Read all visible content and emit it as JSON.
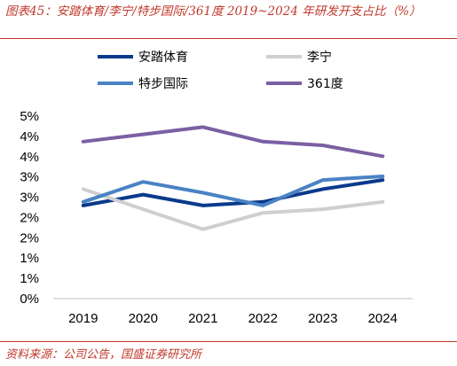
{
  "title": "图表45：安踏体育/李宁/特步国际/361度 2019~2024 年研发开支占比（%）",
  "source": "资料来源：公司公告，国盛证券研究所",
  "chart_data": {
    "type": "line",
    "x": [
      "2019",
      "2020",
      "2021",
      "2022",
      "2023",
      "2024"
    ],
    "ylim": [
      0,
      5
    ],
    "yticks": [
      "0%",
      "1%",
      "1%",
      "2%",
      "2%",
      "3%",
      "3%",
      "4%",
      "4%",
      "5%"
    ],
    "legend_position": "top",
    "grid": false,
    "series": [
      {
        "name": "安踏体育",
        "color": "#0b3a8c",
        "values": [
          2.55,
          2.85,
          2.55,
          2.65,
          3.0,
          3.25
        ]
      },
      {
        "name": "李宁",
        "color": "#cfcfcf",
        "values": [
          3.0,
          2.45,
          1.9,
          2.35,
          2.45,
          2.65
        ]
      },
      {
        "name": "特步国际",
        "color": "#4a82c4",
        "values": [
          2.65,
          3.2,
          2.9,
          2.55,
          3.25,
          3.35
        ]
      },
      {
        "name": "361度",
        "color": "#7b5fa3",
        "values": [
          4.3,
          4.5,
          4.7,
          4.3,
          4.2,
          3.9
        ]
      }
    ]
  }
}
